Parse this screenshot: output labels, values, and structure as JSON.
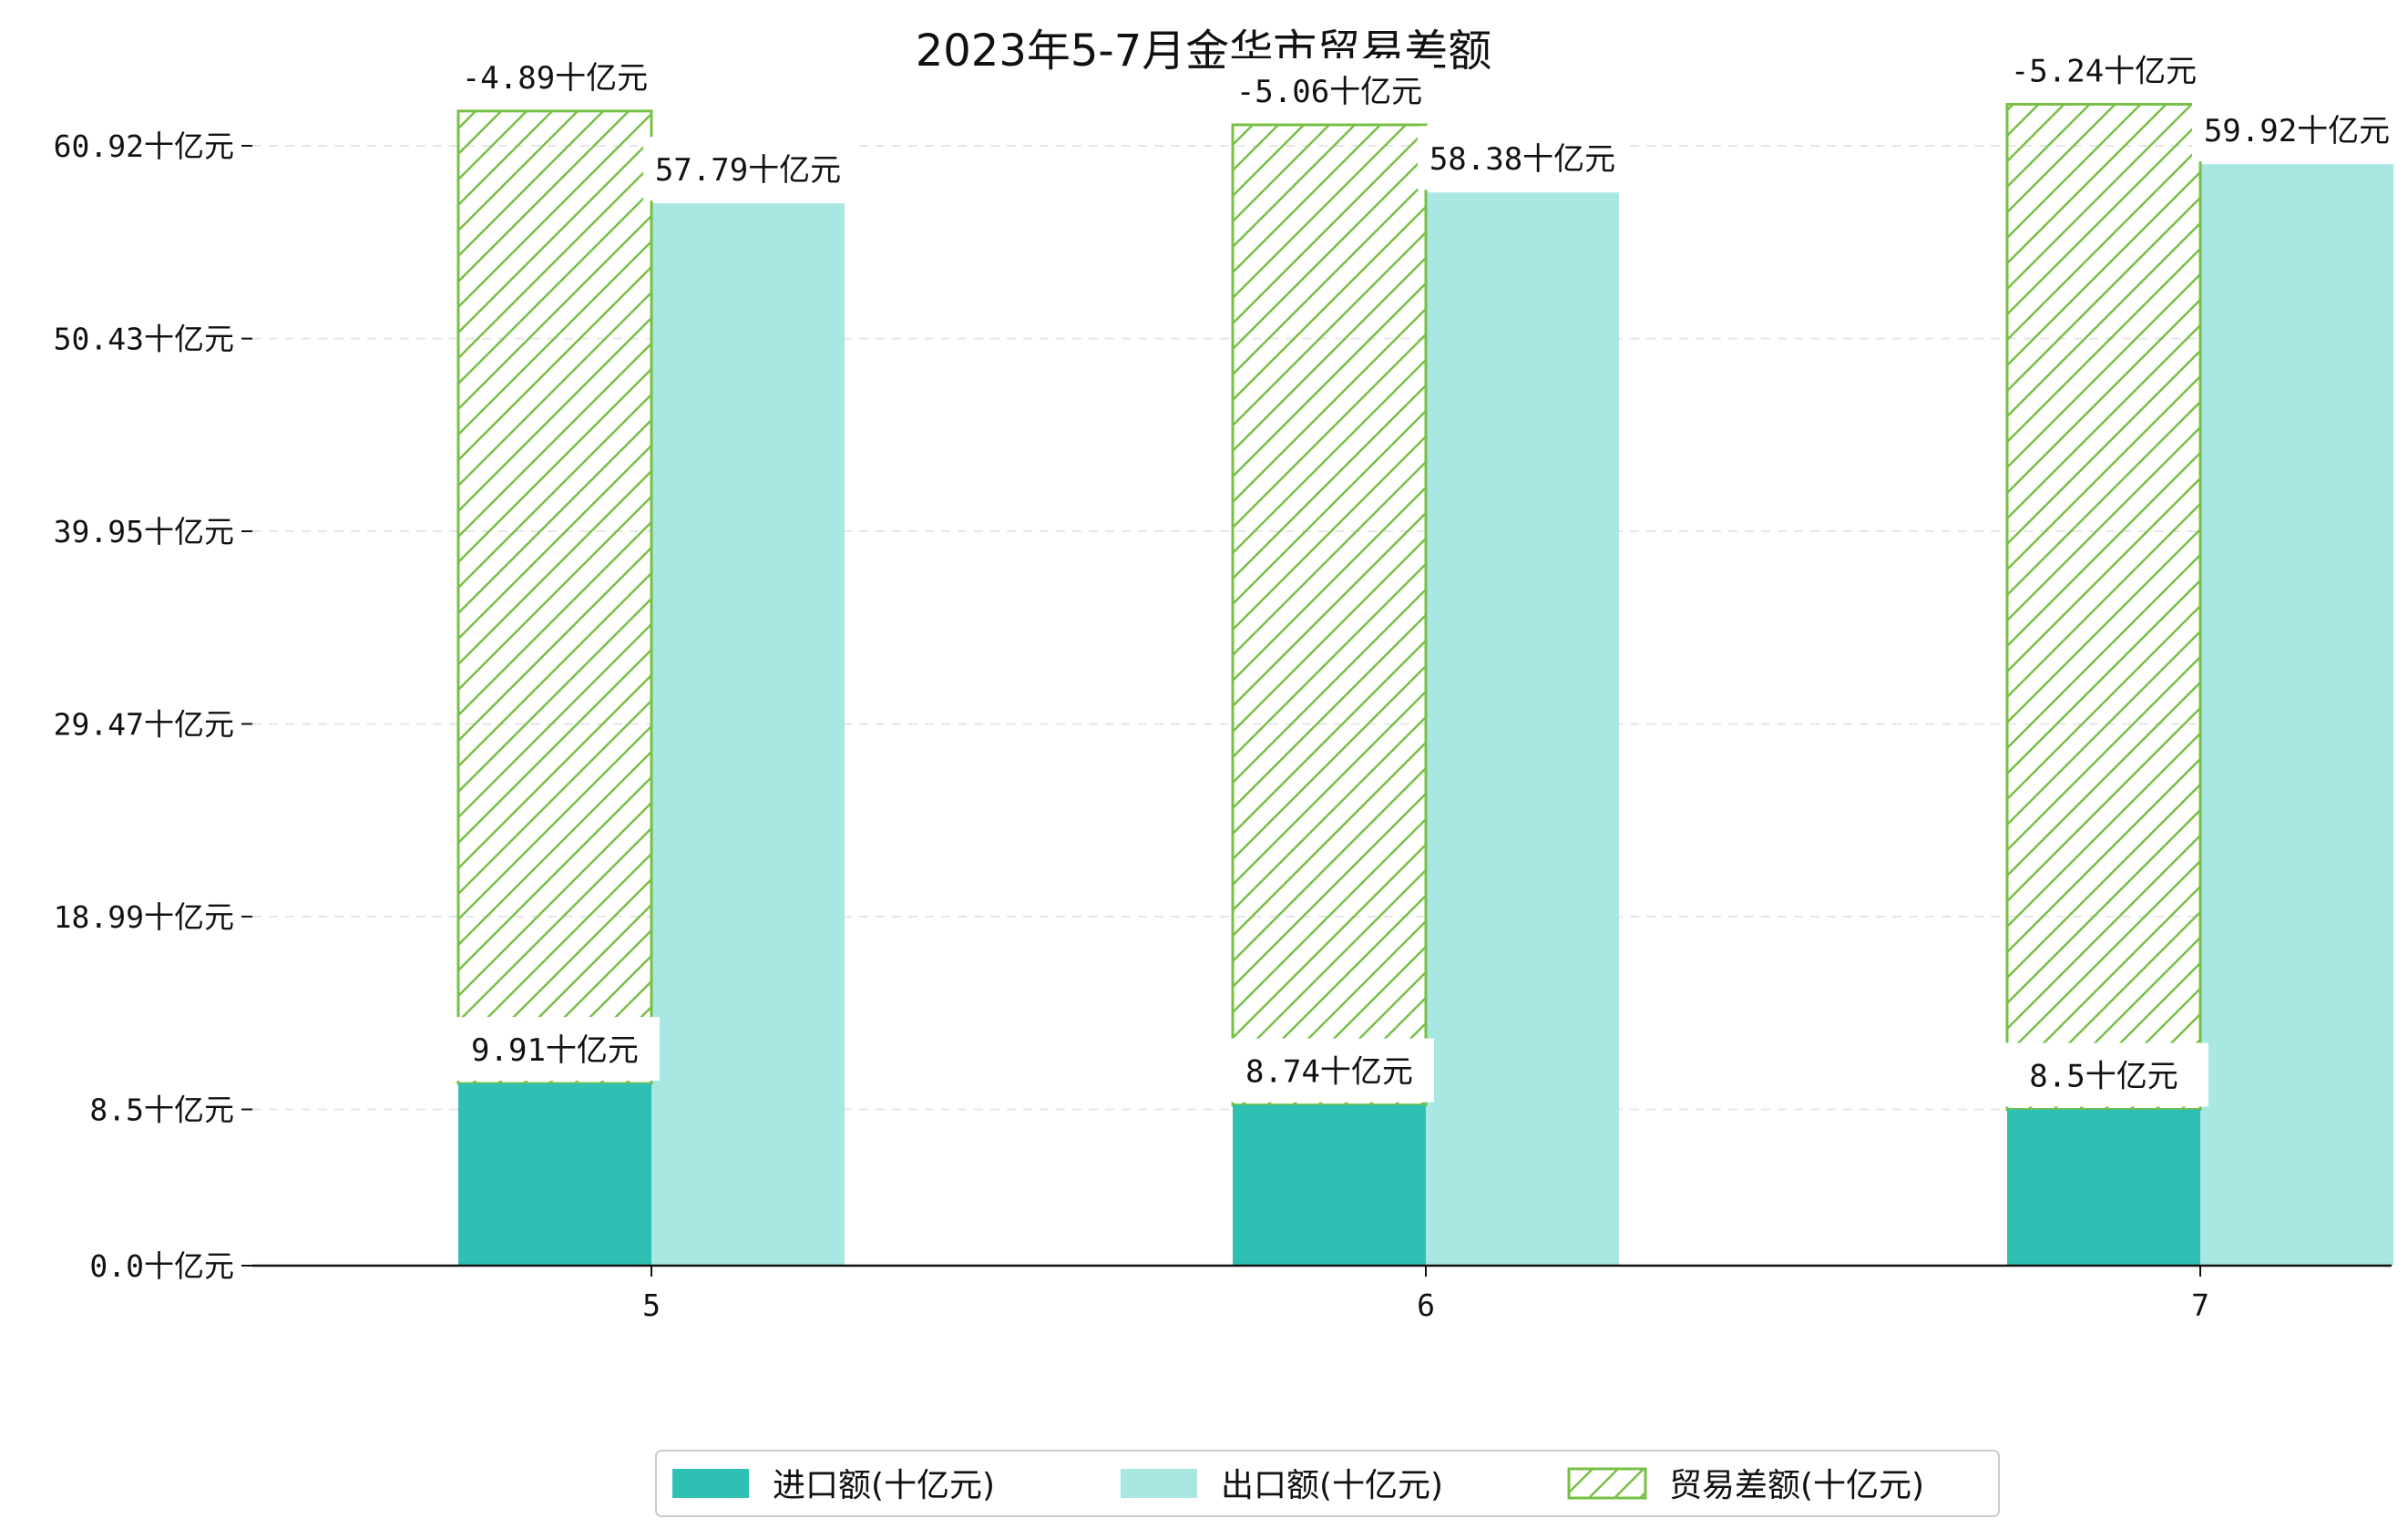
{
  "chart_data": {
    "type": "bar",
    "title": "2023年5-7月金华市贸易差额",
    "categories": [
      "5",
      "6",
      "7"
    ],
    "y_unit": "十亿元",
    "yticks": [
      "0.0十亿元",
      "8.5十亿元",
      "18.99十亿元",
      "29.47十亿元",
      "39.95十亿元",
      "50.43十亿元",
      "60.92十亿元"
    ],
    "ylim": [
      0,
      62
    ],
    "grid": "horizontal, dashed, light",
    "legend_position": "bottom-center",
    "series": [
      {
        "name": "进口额(十亿元)",
        "color": "#2ec0b2",
        "values": [
          9.91,
          8.74,
          8.5
        ],
        "labels": [
          "9.91十亿元",
          "8.74十亿元",
          "8.5十亿元"
        ]
      },
      {
        "name": "出口额(十亿元)",
        "color": "#a9e8e2",
        "values": [
          57.79,
          58.38,
          59.92
        ],
        "labels": [
          "57.79十亿元",
          "58.38十亿元",
          "59.92十亿元"
        ]
      },
      {
        "name": "贸易差额(十亿元)",
        "color": "#78bf45",
        "hatch": "diagonal",
        "values": [
          -4.89,
          -5.06,
          -5.24
        ],
        "labels": [
          "-4.89十亿元",
          "-5.06十亿元",
          "-5.24十亿元"
        ]
      }
    ]
  }
}
